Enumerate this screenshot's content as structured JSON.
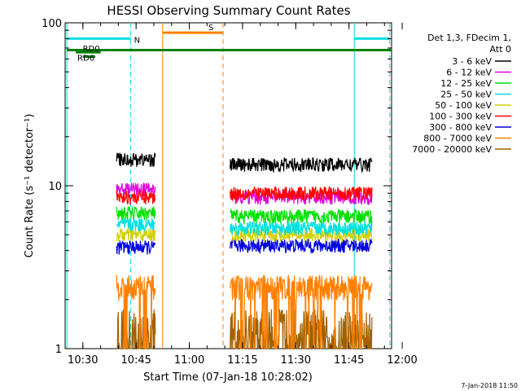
{
  "chart_data": {
    "type": "line",
    "title": "HESSI Observing Summary Count Rates",
    "xlabel": "Start Time (07-Jan-18 10:28:02)",
    "ylabel": "Count Rate (s⁻¹ detector⁻¹)",
    "x_range_minutes": [
      -5,
      87
    ],
    "y_range": [
      1,
      100
    ],
    "y_scale": "log",
    "x_ticks": [
      {
        "label": "10:30",
        "min": 0
      },
      {
        "label": "10:45",
        "min": 15
      },
      {
        "label": "11:00",
        "min": 30
      },
      {
        "label": "11:15",
        "min": 45
      },
      {
        "label": "11:30",
        "min": 60
      },
      {
        "label": "11:45",
        "min": 75
      },
      {
        "label": "12:00",
        "min": 90
      }
    ],
    "y_ticks": [
      {
        "label": "1",
        "v": 1
      },
      {
        "label": "10",
        "v": 10
      },
      {
        "label": "100",
        "v": 100
      }
    ],
    "legend_header": [
      "Det 1,3, FDecim 1,",
      "Att 0"
    ],
    "legend_position": "right",
    "series": [
      {
        "name": "3 - 6 keV",
        "color": "#000000",
        "seg1": 14.5,
        "seg2": 13.5
      },
      {
        "name": "6 - 12 keV",
        "color": "#e000e0",
        "seg1": 9.5,
        "seg2": 8.5
      },
      {
        "name": "12 - 25 keV",
        "color": "#00e000",
        "seg1": 6.8,
        "seg2": 6.5
      },
      {
        "name": "25 - 50 keV",
        "color": "#00e0e0",
        "seg1": 5.8,
        "seg2": 5.5
      },
      {
        "name": "50 - 100 keV",
        "color": "#d0d000",
        "seg1": 5.0,
        "seg2": 5.0
      },
      {
        "name": "100 - 300 keV",
        "color": "#ff0000",
        "seg1": 8.5,
        "seg2": 9.0
      },
      {
        "name": "300 - 800 keV",
        "color": "#0000e0",
        "seg1": 4.2,
        "seg2": 4.3
      },
      {
        "name": "800 - 7000 keV",
        "color": "#ff8000",
        "seg1": 2.4,
        "seg2": 2.4
      },
      {
        "name": "7000 - 20000 keV",
        "color": "#a06000",
        "seg1": 1.3,
        "seg2": 1.3
      }
    ],
    "data_segments_minutes": [
      [
        9.5,
        20.5
      ],
      [
        41.5,
        81.5
      ]
    ],
    "bars": [
      {
        "label": "N",
        "color": "#00e0e0",
        "y": 80,
        "ranges": [
          [
            -4.5,
            13.5
          ],
          [
            76.5,
            86.5
          ]
        ]
      },
      {
        "label": "",
        "color": "#008000",
        "y": 68,
        "ranges": [
          [
            -4.5,
            87
          ]
        ]
      },
      {
        "label": "RD0",
        "color": "#008000",
        "y": 66,
        "ranges": [
          [
            -2,
            5
          ]
        ]
      },
      {
        "label": "RD6",
        "color": "#008000",
        "y": 62,
        "ranges": [
          [
            0,
            3.5
          ]
        ]
      },
      {
        "label": "S",
        "color": "#ff8000",
        "y": 87,
        "ranges": [
          [
            22.5,
            39.5
          ]
        ]
      }
    ],
    "vlines": [
      {
        "min": -4.5,
        "color": "#00e0e0",
        "style": "solid"
      },
      {
        "min": 13.5,
        "color": "#00e0e0",
        "style": "dashed"
      },
      {
        "min": 22.5,
        "color": "#ff8000",
        "style": "solid"
      },
      {
        "min": 39.5,
        "color": "#ff8000",
        "style": "dashed"
      },
      {
        "min": 76.5,
        "color": "#00e0e0",
        "style": "solid"
      },
      {
        "min": 86.5,
        "color": "#00e0e0",
        "style": "dashed"
      }
    ]
  },
  "footer_timestamp": "7-Jan-2018 11:50"
}
